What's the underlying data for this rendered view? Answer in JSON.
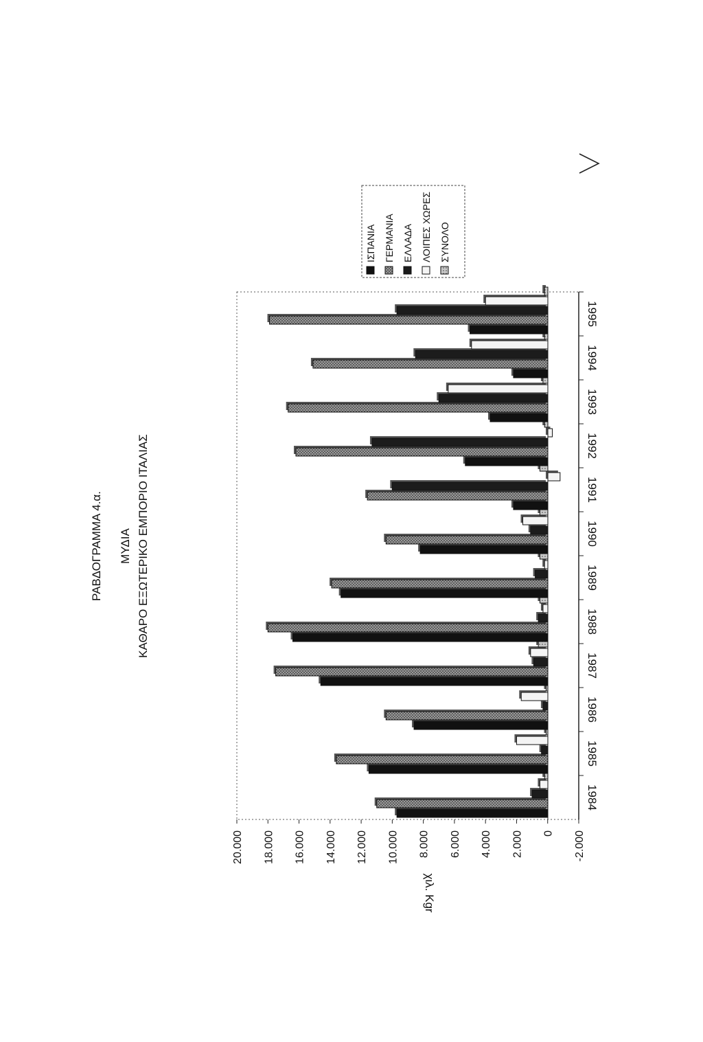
{
  "page": {
    "figure_label": "ΡΑΒΔΟΓΡΑΜΜΑ 4.α.",
    "title_line1": "ΜΥΔΙΑ",
    "title_line2": "ΚΑΘΑΡΟ ΕΞΩΤΕΡΙΚΟ ΕΜΠΟΡΙΟ ΙΤΑΛΙΑΣ"
  },
  "chart_data": {
    "type": "bar",
    "orientation": "vertical, page rotated 90° clockwise",
    "title": "ΜΥΔΙΑ ΚΑΘΑΡΟ ΕΞΩΤΕΡΙΚΟ ΕΜΠΟΡΙΟ ΙΤΑΛΙΑΣ",
    "xlabel": "",
    "ylabel": "χιλ. Κgr",
    "ylim": [
      -2000,
      20000
    ],
    "yticks": [
      -2000,
      0,
      2000,
      4000,
      6000,
      8000,
      10000,
      12000,
      14000,
      16000,
      18000,
      20000
    ],
    "ytick_labels": [
      "-2.000",
      "0",
      "2.000",
      "4.000",
      "6.000",
      "8.000",
      "10.000",
      "12.000",
      "14.000",
      "16.000",
      "18.000",
      "20.000"
    ],
    "categories": [
      "1984",
      "1985",
      "1986",
      "1987",
      "1988",
      "1989",
      "1990",
      "1991",
      "1992",
      "1993",
      "1994",
      "1995"
    ],
    "legend_position": "right",
    "series": [
      {
        "name": "ΙΣΠΑΝΙΑ",
        "color": "#111111",
        "values": [
          9700,
          11500,
          8600,
          14600,
          16400,
          13300,
          8200,
          2200,
          5300,
          3700,
          2200,
          5000
        ]
      },
      {
        "name": "ΓΕΡΜΑΝΙΑ",
        "color": "#4a4a4a",
        "values": [
          11000,
          13600,
          10400,
          17500,
          18000,
          13900,
          10400,
          11600,
          16200,
          16700,
          15100,
          17900
        ]
      },
      {
        "name": "ΕΛΛΑΔΑ",
        "color": "#222222",
        "values": [
          1000,
          400,
          300,
          900,
          600,
          800,
          1100,
          10000,
          11300,
          7000,
          8500,
          9700
        ]
      },
      {
        "name": "ΛΟΙΠΕΣ ΧΩΡΕΣ",
        "color": "#f2f2f2",
        "values": [
          500,
          2000,
          1700,
          1100,
          300,
          200,
          1600,
          -800,
          -300,
          6400,
          4900,
          4000
        ]
      },
      {
        "name": "ΣΥΝΟΛΟ",
        "color": "#8a8a8a",
        "values": [
          200,
          100,
          100,
          600,
          500,
          500,
          500,
          500,
          200,
          300,
          200,
          200
        ]
      }
    ]
  }
}
